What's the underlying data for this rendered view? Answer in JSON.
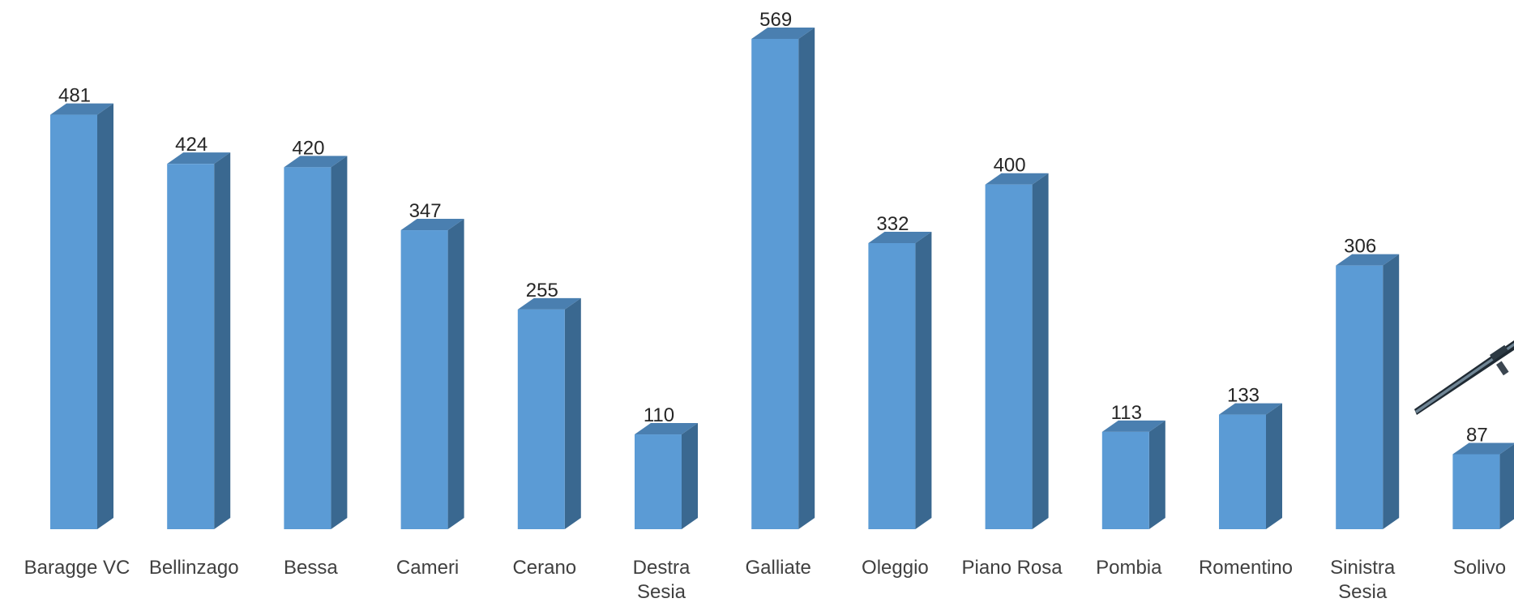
{
  "chart_data": {
    "type": "bar",
    "title": "",
    "xlabel": "",
    "ylabel": "",
    "ylim": [
      0,
      600
    ],
    "grid": false,
    "legend": "none",
    "style": "3d-columns",
    "categories": [
      "Baragge VC",
      "Bellinzago",
      "Bessa",
      "Cameri",
      "Cerano",
      "Destra Sesia",
      "Galliate",
      "Oleggio",
      "Piano Rosa",
      "Pombia",
      "Romentino",
      "Sinistra Sesia",
      "Solivo"
    ],
    "values": [
      481,
      424,
      420,
      347,
      255,
      110,
      569,
      332,
      400,
      113,
      133,
      306,
      87
    ],
    "colors": {
      "front": "#5b9bd5",
      "side": "#3a6890",
      "top": "#4a7fb0"
    }
  },
  "decoration": {
    "icon": "firearm-icon"
  }
}
